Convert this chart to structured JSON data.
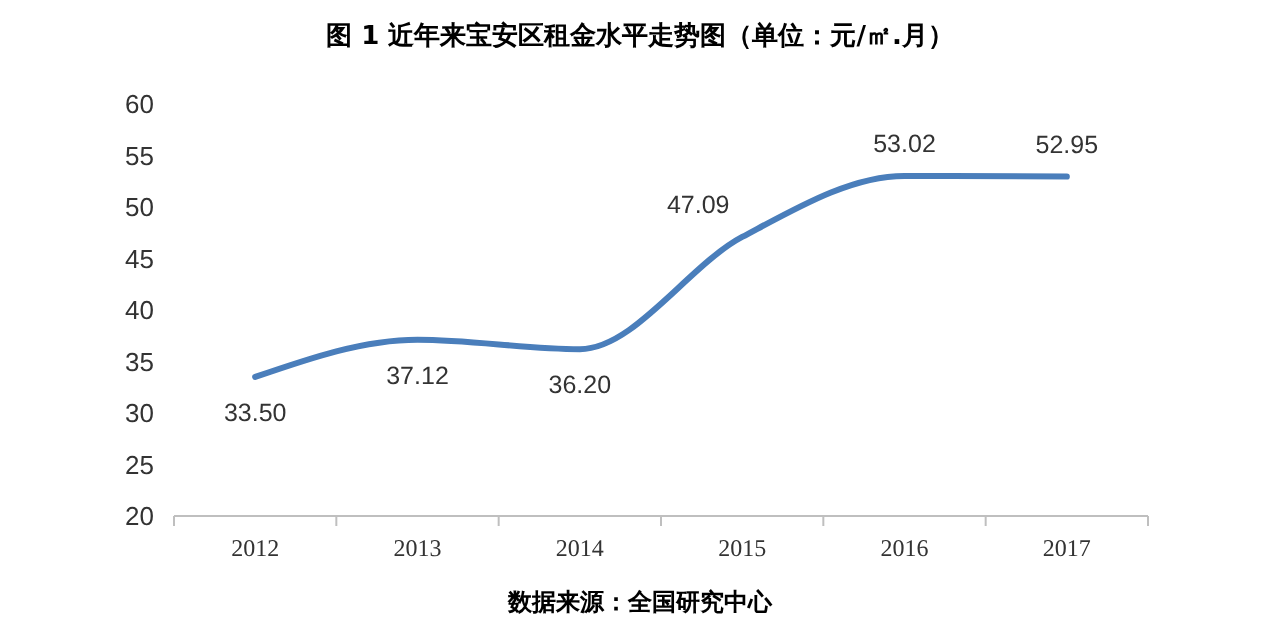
{
  "chart_data": {
    "type": "line",
    "title": "图 1   近年来宝安区租金水平走势图（单位：元/㎡.月）",
    "categories": [
      "2012",
      "2013",
      "2014",
      "2015",
      "2016",
      "2017"
    ],
    "series": [
      {
        "color": "#4a7ebb",
        "values": [
          33.5,
          37.12,
          36.2,
          47.09,
          53.02,
          52.95
        ]
      }
    ],
    "value_labels": [
      "33.50",
      "37.12",
      "36.20",
      "47.09",
      "53.02",
      "52.95"
    ],
    "ylim": [
      20,
      60
    ],
    "yticks": [
      20,
      25,
      30,
      35,
      40,
      45,
      50,
      55,
      60
    ],
    "grid": false,
    "marker": "none",
    "line_style": "solid",
    "annotations": [
      "数据来源：全国研究中心"
    ]
  }
}
